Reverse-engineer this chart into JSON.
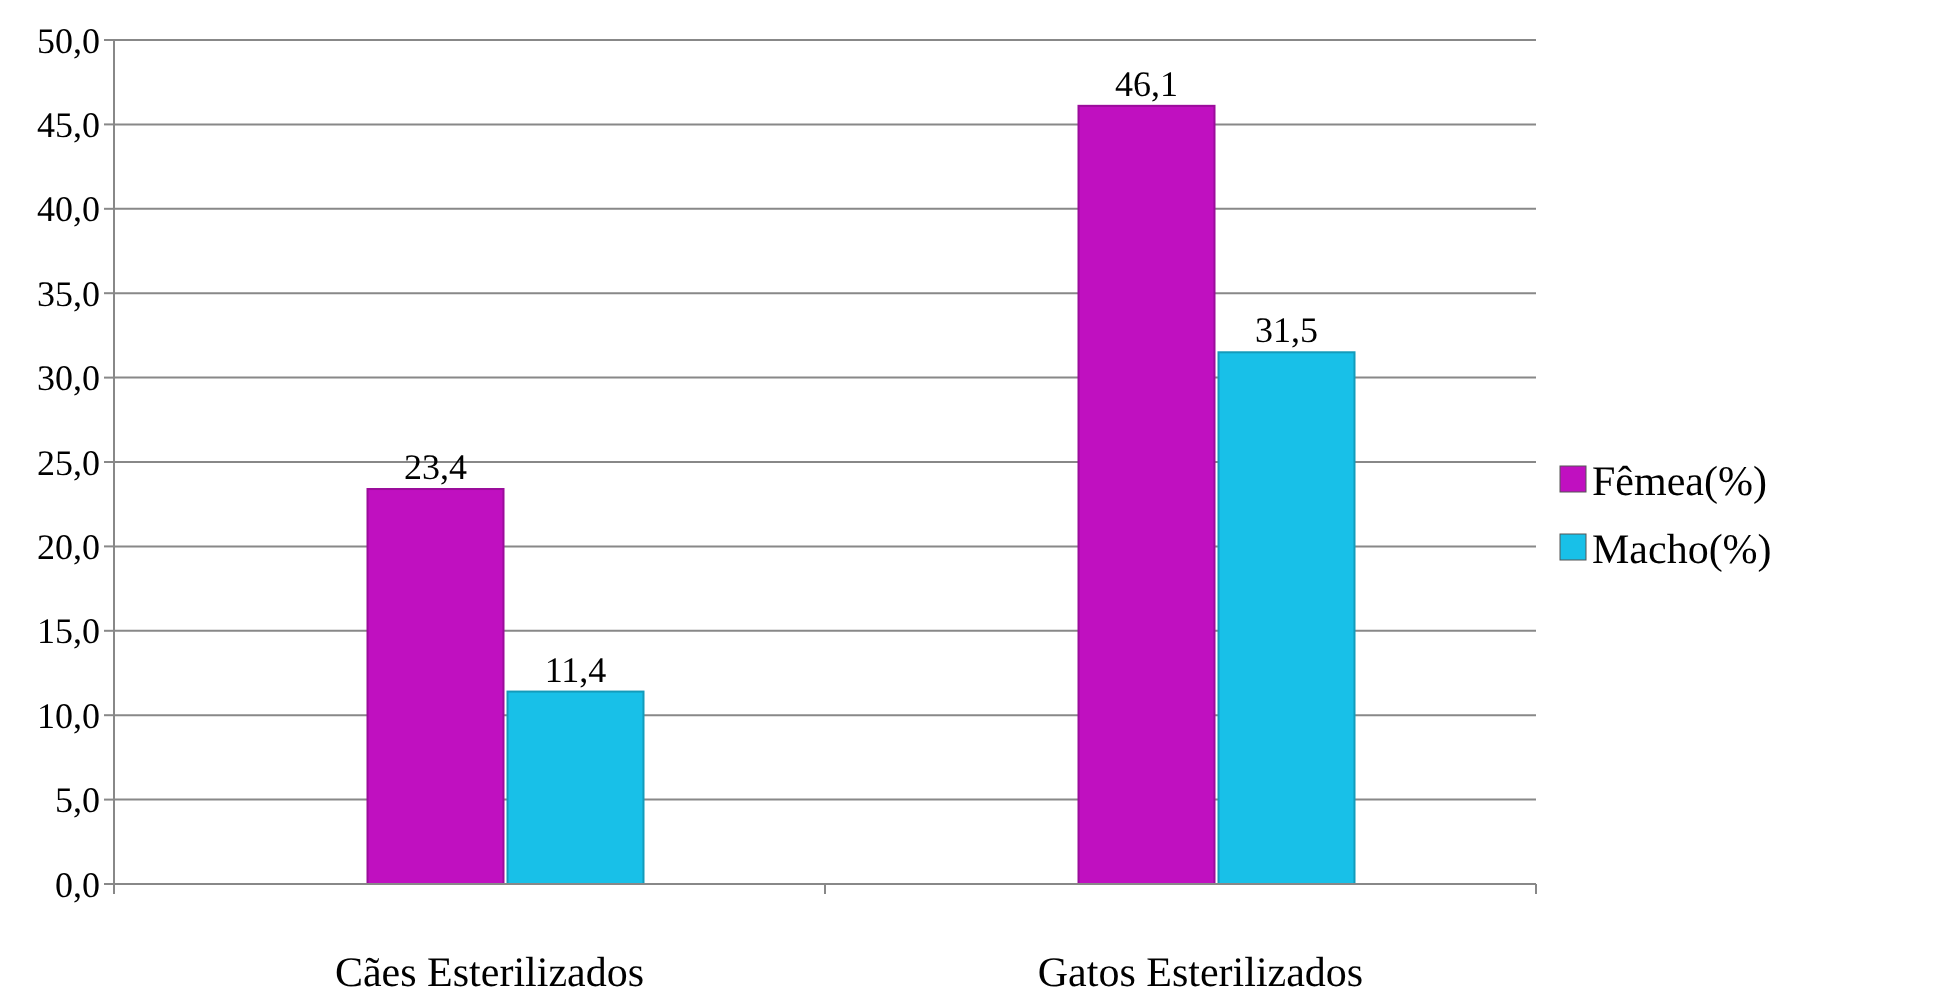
{
  "chart_data": {
    "type": "bar",
    "categories": [
      "Cães Esterilizados",
      "Gatos Esterilizados"
    ],
    "series": [
      {
        "name": "Fêmea(%)",
        "color": "#c010c0",
        "values": [
          23.4,
          46.1
        ],
        "value_labels": [
          "23,4",
          "46,1"
        ]
      },
      {
        "name": "Macho(%)",
        "color": "#18c0e8",
        "values": [
          11.4,
          31.5
        ],
        "value_labels": [
          "11,4",
          "31,5"
        ]
      }
    ],
    "ylim": [
      0,
      50
    ],
    "yticks": [
      {
        "value": 0,
        "label": "0,0"
      },
      {
        "value": 5,
        "label": "5,0"
      },
      {
        "value": 10,
        "label": "10,0"
      },
      {
        "value": 15,
        "label": "15,0"
      },
      {
        "value": 20,
        "label": "20,0"
      },
      {
        "value": 25,
        "label": "25,0"
      },
      {
        "value": 30,
        "label": "30,0"
      },
      {
        "value": 35,
        "label": "35,0"
      },
      {
        "value": 40,
        "label": "40,0"
      },
      {
        "value": 45,
        "label": "45,0"
      },
      {
        "value": 50,
        "label": "50,0"
      }
    ],
    "grid": "y",
    "legend": "right"
  }
}
